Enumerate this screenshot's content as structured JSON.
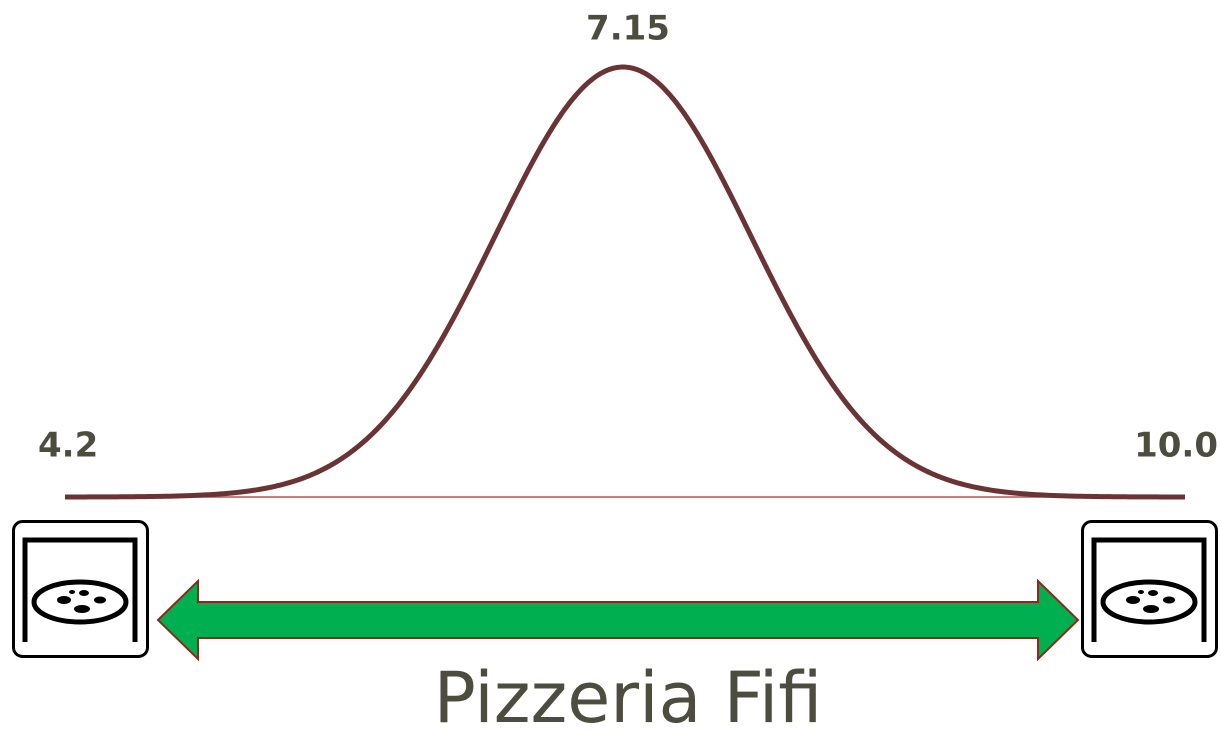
{
  "labels": {
    "min": "4.2",
    "peak": "7.15",
    "max": "10.0"
  },
  "title": "Pizzeria Fifi"
}
